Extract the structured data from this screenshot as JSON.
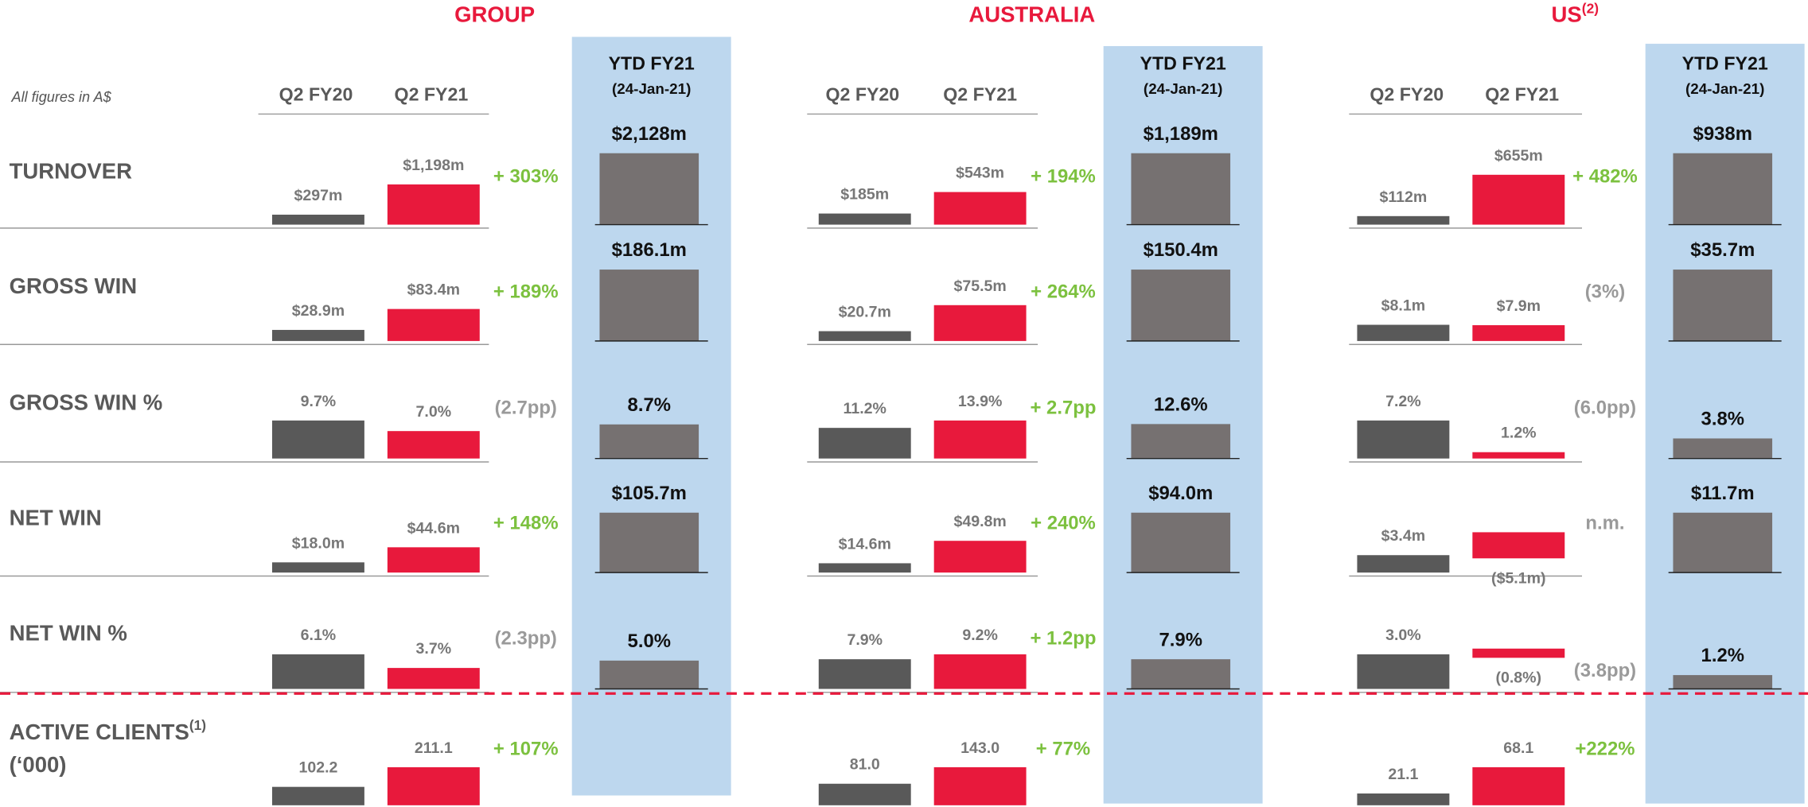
{
  "note": "All figures in A$",
  "row_labels": [
    {
      "label": "TURNOVER"
    },
    {
      "label": "GROSS WIN"
    },
    {
      "label": "GROSS WIN %"
    },
    {
      "label": "NET WIN"
    },
    {
      "label": "NET WIN %"
    },
    {
      "label": "ACTIVE CLIENTS",
      "note": "(1)",
      "line2": "(‘000)"
    }
  ],
  "colors": {
    "q2fy20": "#595959",
    "q2fy21": "#e8193c",
    "ytd": "#767171",
    "box": "#bdd7ee",
    "title": "#e8193c",
    "up": "#7cc13f",
    "flat": "#9a9a9a"
  },
  "sections": [
    {
      "title": "GROUP",
      "columns": [
        "Q2 FY20",
        "Q2 FY21"
      ],
      "ytd_header": [
        "YTD FY21",
        "(24-Jan-21)"
      ],
      "rows": [
        {
          "q2fy20": {
            "value": 297,
            "label": "$297m"
          },
          "q2fy21": {
            "value": 1198,
            "label": "$1,198m"
          },
          "change": "+ 303%",
          "ytd": {
            "value": 2128,
            "label": "$2,128m"
          }
        },
        {
          "q2fy20": {
            "value": 28.9,
            "label": "$28.9m"
          },
          "q2fy21": {
            "value": 83.4,
            "label": "$83.4m"
          },
          "change": "+ 189%",
          "ytd": {
            "value": 186.1,
            "label": "$186.1m"
          }
        },
        {
          "q2fy20": {
            "value": 9.7,
            "label": "9.7%"
          },
          "q2fy21": {
            "value": 7.0,
            "label": "7.0%"
          },
          "change": "(2.7pp)",
          "ytd": {
            "value": 8.7,
            "label": "8.7%"
          }
        },
        {
          "q2fy20": {
            "value": 18.0,
            "label": "$18.0m"
          },
          "q2fy21": {
            "value": 44.6,
            "label": "$44.6m"
          },
          "change": "+ 148%",
          "ytd": {
            "value": 105.7,
            "label": "$105.7m"
          }
        },
        {
          "q2fy20": {
            "value": 6.1,
            "label": "6.1%"
          },
          "q2fy21": {
            "value": 3.7,
            "label": "3.7%"
          },
          "change": "(2.3pp)",
          "ytd": {
            "value": 5.0,
            "label": "5.0%"
          }
        },
        {
          "q2fy20": {
            "value": 102.2,
            "label": "102.2"
          },
          "q2fy21": {
            "value": 211.1,
            "label": "211.1"
          },
          "change": "+ 107%"
        }
      ]
    },
    {
      "title": "AUSTRALIA",
      "columns": [
        "Q2 FY20",
        "Q2 FY21"
      ],
      "ytd_header": [
        "YTD FY21",
        "(24-Jan-21)"
      ],
      "rows": [
        {
          "q2fy20": {
            "value": 185,
            "label": "$185m"
          },
          "q2fy21": {
            "value": 543,
            "label": "$543m"
          },
          "change": "+ 194%",
          "ytd": {
            "value": 1189,
            "label": "$1,189m"
          }
        },
        {
          "q2fy20": {
            "value": 20.7,
            "label": "$20.7m"
          },
          "q2fy21": {
            "value": 75.5,
            "label": "$75.5m"
          },
          "change": "+ 264%",
          "ytd": {
            "value": 150.4,
            "label": "$150.4m"
          }
        },
        {
          "q2fy20": {
            "value": 11.2,
            "label": "11.2%"
          },
          "q2fy21": {
            "value": 13.9,
            "label": "13.9%"
          },
          "change": "+ 2.7pp",
          "ytd": {
            "value": 12.6,
            "label": "12.6%"
          }
        },
        {
          "q2fy20": {
            "value": 14.6,
            "label": "$14.6m"
          },
          "q2fy21": {
            "value": 49.8,
            "label": "$49.8m"
          },
          "change": "+ 240%",
          "ytd": {
            "value": 94.0,
            "label": "$94.0m"
          }
        },
        {
          "q2fy20": {
            "value": 7.9,
            "label": "7.9%"
          },
          "q2fy21": {
            "value": 9.2,
            "label": "9.2%"
          },
          "change": "+ 1.2pp",
          "ytd": {
            "value": 7.9,
            "label": "7.9%"
          }
        },
        {
          "q2fy20": {
            "value": 81.0,
            "label": "81.0"
          },
          "q2fy21": {
            "value": 143.0,
            "label": "143.0"
          },
          "change": "+ 77%"
        }
      ]
    },
    {
      "title": "US",
      "title_note": "(2)",
      "columns": [
        "Q2 FY20",
        "Q2 FY21"
      ],
      "ytd_header": [
        "YTD FY21",
        "(24-Jan-21)"
      ],
      "rows": [
        {
          "q2fy20": {
            "value": 112,
            "label": "$112m"
          },
          "q2fy21": {
            "value": 655,
            "label": "$655m"
          },
          "change": "+ 482%",
          "ytd": {
            "value": 938,
            "label": "$938m"
          }
        },
        {
          "q2fy20": {
            "value": 8.1,
            "label": "$8.1m"
          },
          "q2fy21": {
            "value": 7.9,
            "label": "$7.9m"
          },
          "change": "(3%)",
          "ytd": {
            "value": 35.7,
            "label": "$35.7m"
          }
        },
        {
          "q2fy20": {
            "value": 7.2,
            "label": "7.2%"
          },
          "q2fy21": {
            "value": 1.2,
            "label": "1.2%"
          },
          "change": "(6.0pp)",
          "ytd": {
            "value": 3.8,
            "label": "3.8%"
          }
        },
        {
          "q2fy20": {
            "value": 3.4,
            "label": "$3.4m"
          },
          "q2fy21": {
            "value": -5.1,
            "label": "($5.1m)"
          },
          "change": "n.m.",
          "ytd": {
            "value": 11.7,
            "label": "$11.7m"
          }
        },
        {
          "q2fy20": {
            "value": 3.0,
            "label": "3.0%"
          },
          "q2fy21": {
            "value": -0.8,
            "label": "(0.8%)"
          },
          "change": "(3.8pp)",
          "ytd": {
            "value": 1.2,
            "label": "1.2%"
          }
        },
        {
          "q2fy20": {
            "value": 21.1,
            "label": "21.1"
          },
          "q2fy21": {
            "value": 68.1,
            "label": "68.1"
          },
          "change": "+222%"
        }
      ]
    }
  ]
}
